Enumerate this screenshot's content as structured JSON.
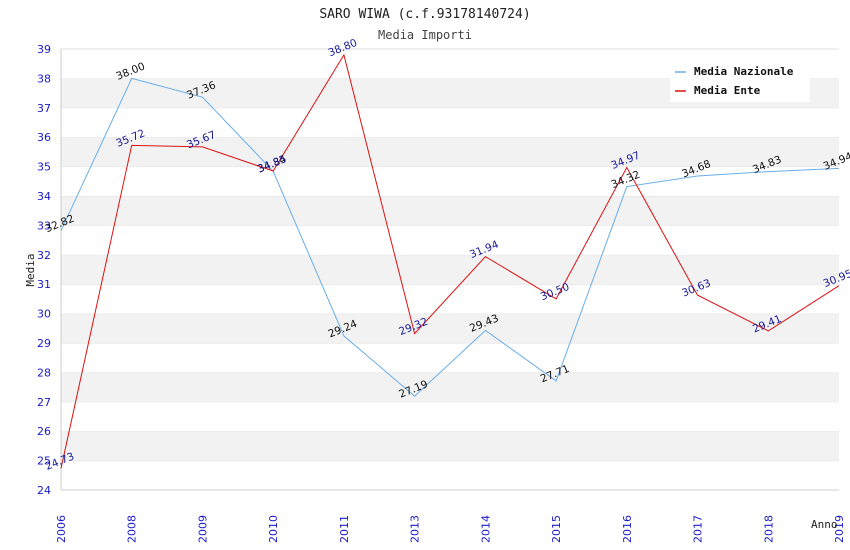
{
  "chart_data": {
    "type": "line",
    "title": "SARO WIWA (c.f.93178140724)",
    "subtitle": "Media Importi",
    "xlabel": "Anno",
    "ylabel": "Media",
    "ylim": [
      24,
      39
    ],
    "yticks": [
      24,
      25,
      26,
      27,
      28,
      29,
      30,
      31,
      32,
      33,
      34,
      35,
      36,
      37,
      38,
      39
    ],
    "categories": [
      "2006",
      "2008",
      "2009",
      "2010",
      "2011",
      "2013",
      "2014",
      "2015",
      "2016",
      "2017",
      "2018",
      "2019"
    ],
    "series": [
      {
        "name": "Media Nazionale",
        "color": "#6aaee8",
        "label_color": "#111111",
        "values": [
          32.82,
          38.0,
          37.36,
          34.84,
          29.24,
          27.19,
          29.43,
          27.71,
          34.32,
          34.68,
          34.83,
          34.94
        ],
        "labels": [
          "32.82",
          "38.00",
          "37.36",
          "34.84",
          "29.24",
          "27.19",
          "29.43",
          "27.71",
          "34.32",
          "34.68",
          "34.83",
          "34.94"
        ]
      },
      {
        "name": "Media Ente",
        "color": "#dd1111",
        "label_color": "#1a1a99",
        "values": [
          24.73,
          35.72,
          35.67,
          34.85,
          38.8,
          29.32,
          31.94,
          30.5,
          34.97,
          30.63,
          29.41,
          30.95
        ],
        "labels": [
          "24.73",
          "35.72",
          "35.67",
          "34.85",
          "38.80",
          "29.32",
          "31.94",
          "30.50",
          "34.97",
          "30.63",
          "29.41",
          "30.95"
        ]
      }
    ],
    "grid": true,
    "legend": "top-right"
  }
}
